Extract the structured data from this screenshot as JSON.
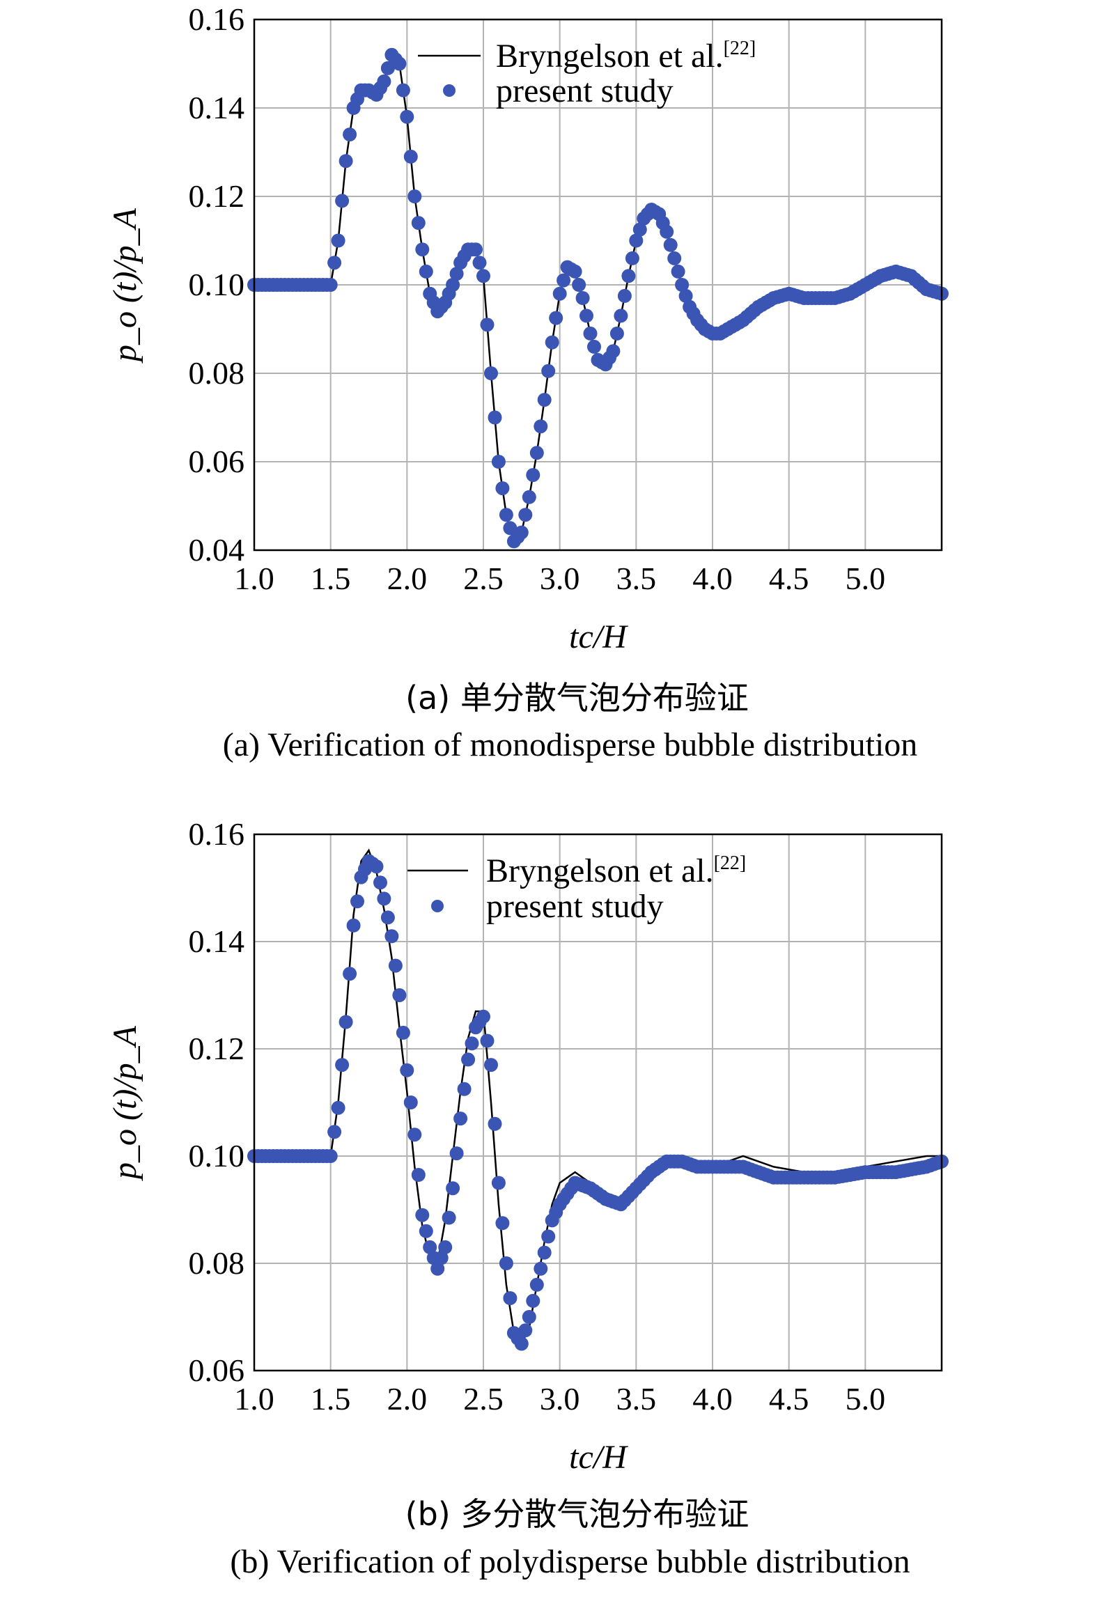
{
  "chart_data": [
    {
      "type": "line",
      "xlabel": "tc/H",
      "ylabel": "p_o (t)/p_A",
      "xlim": [
        1.0,
        5.5
      ],
      "ylim": [
        0.04,
        0.16
      ],
      "xticks": [
        "1.0",
        "1.5",
        "2.0",
        "2.5",
        "3.0",
        "3.5",
        "4.0",
        "4.5",
        "5.0"
      ],
      "yticks": [
        "0.04",
        "0.06",
        "0.08",
        "0.10",
        "0.12",
        "0.14",
        "0.16"
      ],
      "grid": true,
      "legend_position": "top-right",
      "caption_cn": "(a) 单分散气泡分布验证",
      "caption_en": "(a) Verification of monodisperse bubble distribution",
      "series": [
        {
          "name": "Bryngelson et al.",
          "citation": "[22]",
          "style": "line",
          "color": "#000000",
          "x": [
            1.0,
            1.5,
            1.55,
            1.6,
            1.65,
            1.7,
            1.75,
            1.8,
            1.85,
            1.9,
            1.95,
            2.0,
            2.05,
            2.1,
            2.15,
            2.2,
            2.25,
            2.3,
            2.35,
            2.4,
            2.45,
            2.5,
            2.55,
            2.6,
            2.65,
            2.7,
            2.75,
            2.8,
            2.85,
            2.9,
            2.95,
            3.0,
            3.05,
            3.1,
            3.15,
            3.2,
            3.25,
            3.3,
            3.35,
            3.4,
            3.45,
            3.5,
            3.55,
            3.6,
            3.65,
            3.7,
            3.75,
            3.8,
            3.85,
            3.9,
            3.95,
            4.0,
            4.05,
            4.1,
            4.15,
            4.2,
            4.3,
            4.4,
            4.5,
            4.6,
            4.7,
            4.8,
            4.9,
            5.0,
            5.1,
            5.2,
            5.3,
            5.4,
            5.5
          ],
          "y": [
            0.1,
            0.1,
            0.11,
            0.128,
            0.14,
            0.144,
            0.144,
            0.143,
            0.146,
            0.152,
            0.15,
            0.138,
            0.12,
            0.108,
            0.098,
            0.094,
            0.096,
            0.1,
            0.105,
            0.108,
            0.108,
            0.102,
            0.08,
            0.06,
            0.048,
            0.042,
            0.044,
            0.052,
            0.062,
            0.074,
            0.087,
            0.098,
            0.104,
            0.103,
            0.097,
            0.089,
            0.083,
            0.082,
            0.085,
            0.093,
            0.102,
            0.11,
            0.115,
            0.117,
            0.116,
            0.112,
            0.106,
            0.1,
            0.095,
            0.092,
            0.09,
            0.089,
            0.089,
            0.09,
            0.091,
            0.092,
            0.095,
            0.097,
            0.098,
            0.097,
            0.097,
            0.097,
            0.098,
            0.1,
            0.102,
            0.103,
            0.102,
            0.099,
            0.098
          ]
        },
        {
          "name": "present study",
          "style": "markers",
          "color": "#3A55B4",
          "x": [
            1.0,
            1.5,
            1.55,
            1.6,
            1.65,
            1.7,
            1.75,
            1.8,
            1.85,
            1.9,
            1.95,
            2.0,
            2.05,
            2.1,
            2.15,
            2.2,
            2.25,
            2.3,
            2.35,
            2.4,
            2.45,
            2.5,
            2.55,
            2.6,
            2.65,
            2.7,
            2.75,
            2.8,
            2.85,
            2.9,
            2.95,
            3.0,
            3.05,
            3.1,
            3.15,
            3.2,
            3.25,
            3.3,
            3.35,
            3.4,
            3.45,
            3.5,
            3.55,
            3.6,
            3.65,
            3.7,
            3.75,
            3.8,
            3.85,
            3.9,
            3.95,
            4.0,
            4.05,
            4.1,
            4.15,
            4.2,
            4.3,
            4.4,
            4.5,
            4.6,
            4.7,
            4.8,
            4.9,
            5.0,
            5.1,
            5.2,
            5.3,
            5.4,
            5.5
          ],
          "y": [
            0.1,
            0.1,
            0.11,
            0.128,
            0.14,
            0.144,
            0.144,
            0.143,
            0.146,
            0.152,
            0.15,
            0.138,
            0.12,
            0.108,
            0.098,
            0.094,
            0.096,
            0.1,
            0.105,
            0.108,
            0.108,
            0.102,
            0.08,
            0.06,
            0.048,
            0.042,
            0.044,
            0.052,
            0.062,
            0.074,
            0.087,
            0.098,
            0.104,
            0.103,
            0.097,
            0.089,
            0.083,
            0.082,
            0.085,
            0.093,
            0.102,
            0.11,
            0.115,
            0.117,
            0.116,
            0.112,
            0.106,
            0.1,
            0.095,
            0.092,
            0.09,
            0.089,
            0.089,
            0.09,
            0.091,
            0.092,
            0.095,
            0.097,
            0.098,
            0.097,
            0.097,
            0.097,
            0.098,
            0.1,
            0.102,
            0.103,
            0.102,
            0.099,
            0.098
          ]
        }
      ]
    },
    {
      "type": "line",
      "xlabel": "tc/H",
      "ylabel": "p_o (t)/p_A",
      "xlim": [
        1.0,
        5.5
      ],
      "ylim": [
        0.06,
        0.16
      ],
      "xticks": [
        "1.0",
        "1.5",
        "2.0",
        "2.5",
        "3.0",
        "3.5",
        "4.0",
        "4.5",
        "5.0"
      ],
      "yticks": [
        "0.06",
        "0.08",
        "0.10",
        "0.12",
        "0.14",
        "0.16"
      ],
      "grid": true,
      "legend_position": "top-right",
      "caption_cn": "(b) 多分散气泡分布验证",
      "caption_en": "(b) Verification of polydisperse bubble distribution",
      "series": [
        {
          "name": "Bryngelson et al.",
          "citation": "[22]",
          "style": "line",
          "color": "#000000",
          "x": [
            1.0,
            1.5,
            1.55,
            1.6,
            1.65,
            1.7,
            1.75,
            1.8,
            1.85,
            1.9,
            1.95,
            2.0,
            2.05,
            2.1,
            2.15,
            2.2,
            2.25,
            2.3,
            2.35,
            2.4,
            2.45,
            2.5,
            2.55,
            2.6,
            2.65,
            2.7,
            2.75,
            2.8,
            2.85,
            2.9,
            2.95,
            3.0,
            3.05,
            3.1,
            3.2,
            3.3,
            3.4,
            3.5,
            3.6,
            3.7,
            3.8,
            3.9,
            4.0,
            4.2,
            4.4,
            4.6,
            4.8,
            5.0,
            5.2,
            5.4,
            5.5
          ],
          "y": [
            0.1,
            0.1,
            0.11,
            0.126,
            0.145,
            0.155,
            0.157,
            0.153,
            0.146,
            0.137,
            0.124,
            0.112,
            0.098,
            0.087,
            0.081,
            0.08,
            0.088,
            0.1,
            0.112,
            0.122,
            0.127,
            0.127,
            0.11,
            0.091,
            0.076,
            0.067,
            0.065,
            0.068,
            0.076,
            0.084,
            0.091,
            0.095,
            0.096,
            0.097,
            0.095,
            0.093,
            0.092,
            0.095,
            0.098,
            0.1,
            0.1,
            0.099,
            0.098,
            0.1,
            0.098,
            0.097,
            0.097,
            0.098,
            0.099,
            0.1,
            0.1
          ]
        },
        {
          "name": "present study",
          "style": "markers",
          "color": "#3A55B4",
          "x": [
            1.0,
            1.5,
            1.55,
            1.6,
            1.65,
            1.7,
            1.75,
            1.8,
            1.85,
            1.9,
            1.95,
            2.0,
            2.05,
            2.1,
            2.15,
            2.2,
            2.25,
            2.3,
            2.35,
            2.4,
            2.45,
            2.5,
            2.55,
            2.6,
            2.65,
            2.7,
            2.75,
            2.8,
            2.85,
            2.9,
            2.95,
            3.0,
            3.05,
            3.1,
            3.2,
            3.3,
            3.4,
            3.5,
            3.6,
            3.7,
            3.8,
            3.9,
            4.0,
            4.2,
            4.4,
            4.6,
            4.8,
            5.0,
            5.2,
            5.4,
            5.5
          ],
          "y": [
            0.1,
            0.1,
            0.109,
            0.125,
            0.143,
            0.152,
            0.155,
            0.154,
            0.148,
            0.141,
            0.13,
            0.116,
            0.104,
            0.089,
            0.083,
            0.079,
            0.083,
            0.094,
            0.107,
            0.118,
            0.124,
            0.126,
            0.117,
            0.095,
            0.08,
            0.067,
            0.065,
            0.07,
            0.076,
            0.082,
            0.088,
            0.091,
            0.093,
            0.095,
            0.094,
            0.092,
            0.091,
            0.094,
            0.097,
            0.099,
            0.099,
            0.098,
            0.098,
            0.098,
            0.096,
            0.096,
            0.096,
            0.097,
            0.097,
            0.098,
            0.099
          ]
        }
      ]
    }
  ]
}
